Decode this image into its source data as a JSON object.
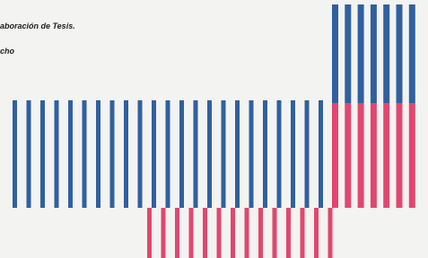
{
  "document": {
    "lines": [
      "aboración de Tesis.",
      "cho"
    ]
  }
}
